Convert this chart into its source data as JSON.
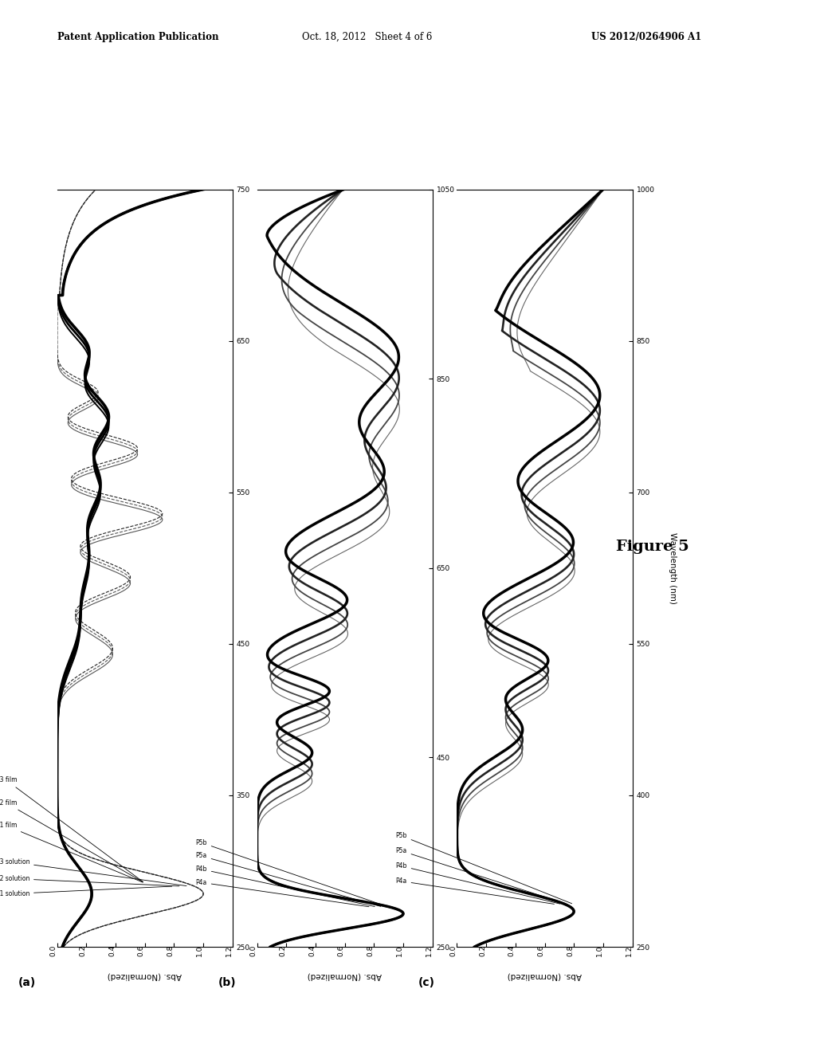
{
  "header_left": "Patent Application Publication",
  "header_center": "Oct. 18, 2012   Sheet 4 of 6",
  "header_right": "US 2012/0264906 A1",
  "figure_label": "Figure 5",
  "panel_a": {
    "label": "(a)",
    "xlabel": "Wavelength (nm)",
    "ylabel": "Abs. (Normalized)",
    "xlim": [
      250,
      750
    ],
    "ylim": [
      0,
      1.2
    ],
    "xticks": [
      250,
      350,
      450,
      550,
      650,
      750
    ],
    "yticks": [
      0,
      0.2,
      0.4,
      0.6,
      0.8,
      1.0,
      1.2
    ]
  },
  "panel_b": {
    "label": "(b)",
    "xlabel": "Wavelength (nm)",
    "ylabel": "Abs. (Normalized)",
    "xlim": [
      250,
      1050
    ],
    "ylim": [
      0,
      1.2
    ],
    "xticks": [
      250,
      450,
      650,
      850,
      1050
    ],
    "yticks": [
      0,
      0.2,
      0.4,
      0.6,
      0.8,
      1.0,
      1.2
    ]
  },
  "panel_c": {
    "label": "(c)",
    "xlabel": "Wavelength (nm)",
    "ylabel": "Abs. (Normalized)",
    "xlim": [
      250,
      1000
    ],
    "ylim": [
      0,
      1.2
    ],
    "xticks": [
      250,
      400,
      550,
      700,
      850,
      1000
    ],
    "yticks": [
      0,
      0.2,
      0.4,
      0.6,
      0.8,
      1.0,
      1.2
    ]
  }
}
